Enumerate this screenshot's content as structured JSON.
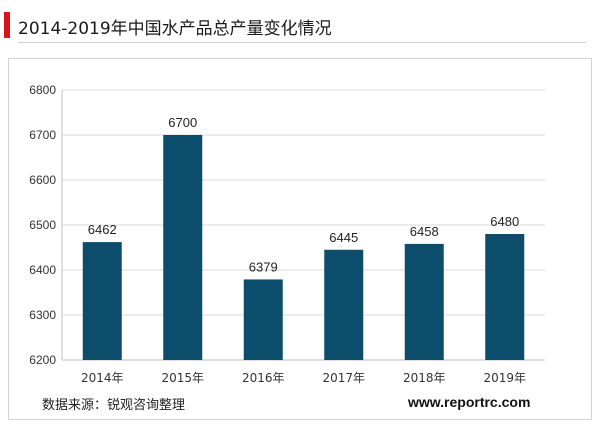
{
  "header": {
    "title": "2014-2019年中国水产品总产量变化情况"
  },
  "colors": {
    "accent": "#d9141b",
    "bar": "#0b4d6b",
    "grid": "#d9d9d9"
  },
  "chart_data": {
    "type": "bar",
    "title": "",
    "xlabel": "",
    "ylabel": "",
    "categories": [
      "2014年",
      "2015年",
      "2016年",
      "2017年",
      "2018年",
      "2019年"
    ],
    "values": [
      6462,
      6700,
      6379,
      6445,
      6458,
      6480
    ],
    "ylim": [
      6200,
      6800
    ],
    "yticks": [
      6200,
      6300,
      6400,
      6500,
      6600,
      6700,
      6800
    ],
    "grid": true,
    "legend": "none"
  },
  "footer": {
    "source": "数据来源：锐观咨询整理",
    "website": "www.reportrc.com"
  }
}
